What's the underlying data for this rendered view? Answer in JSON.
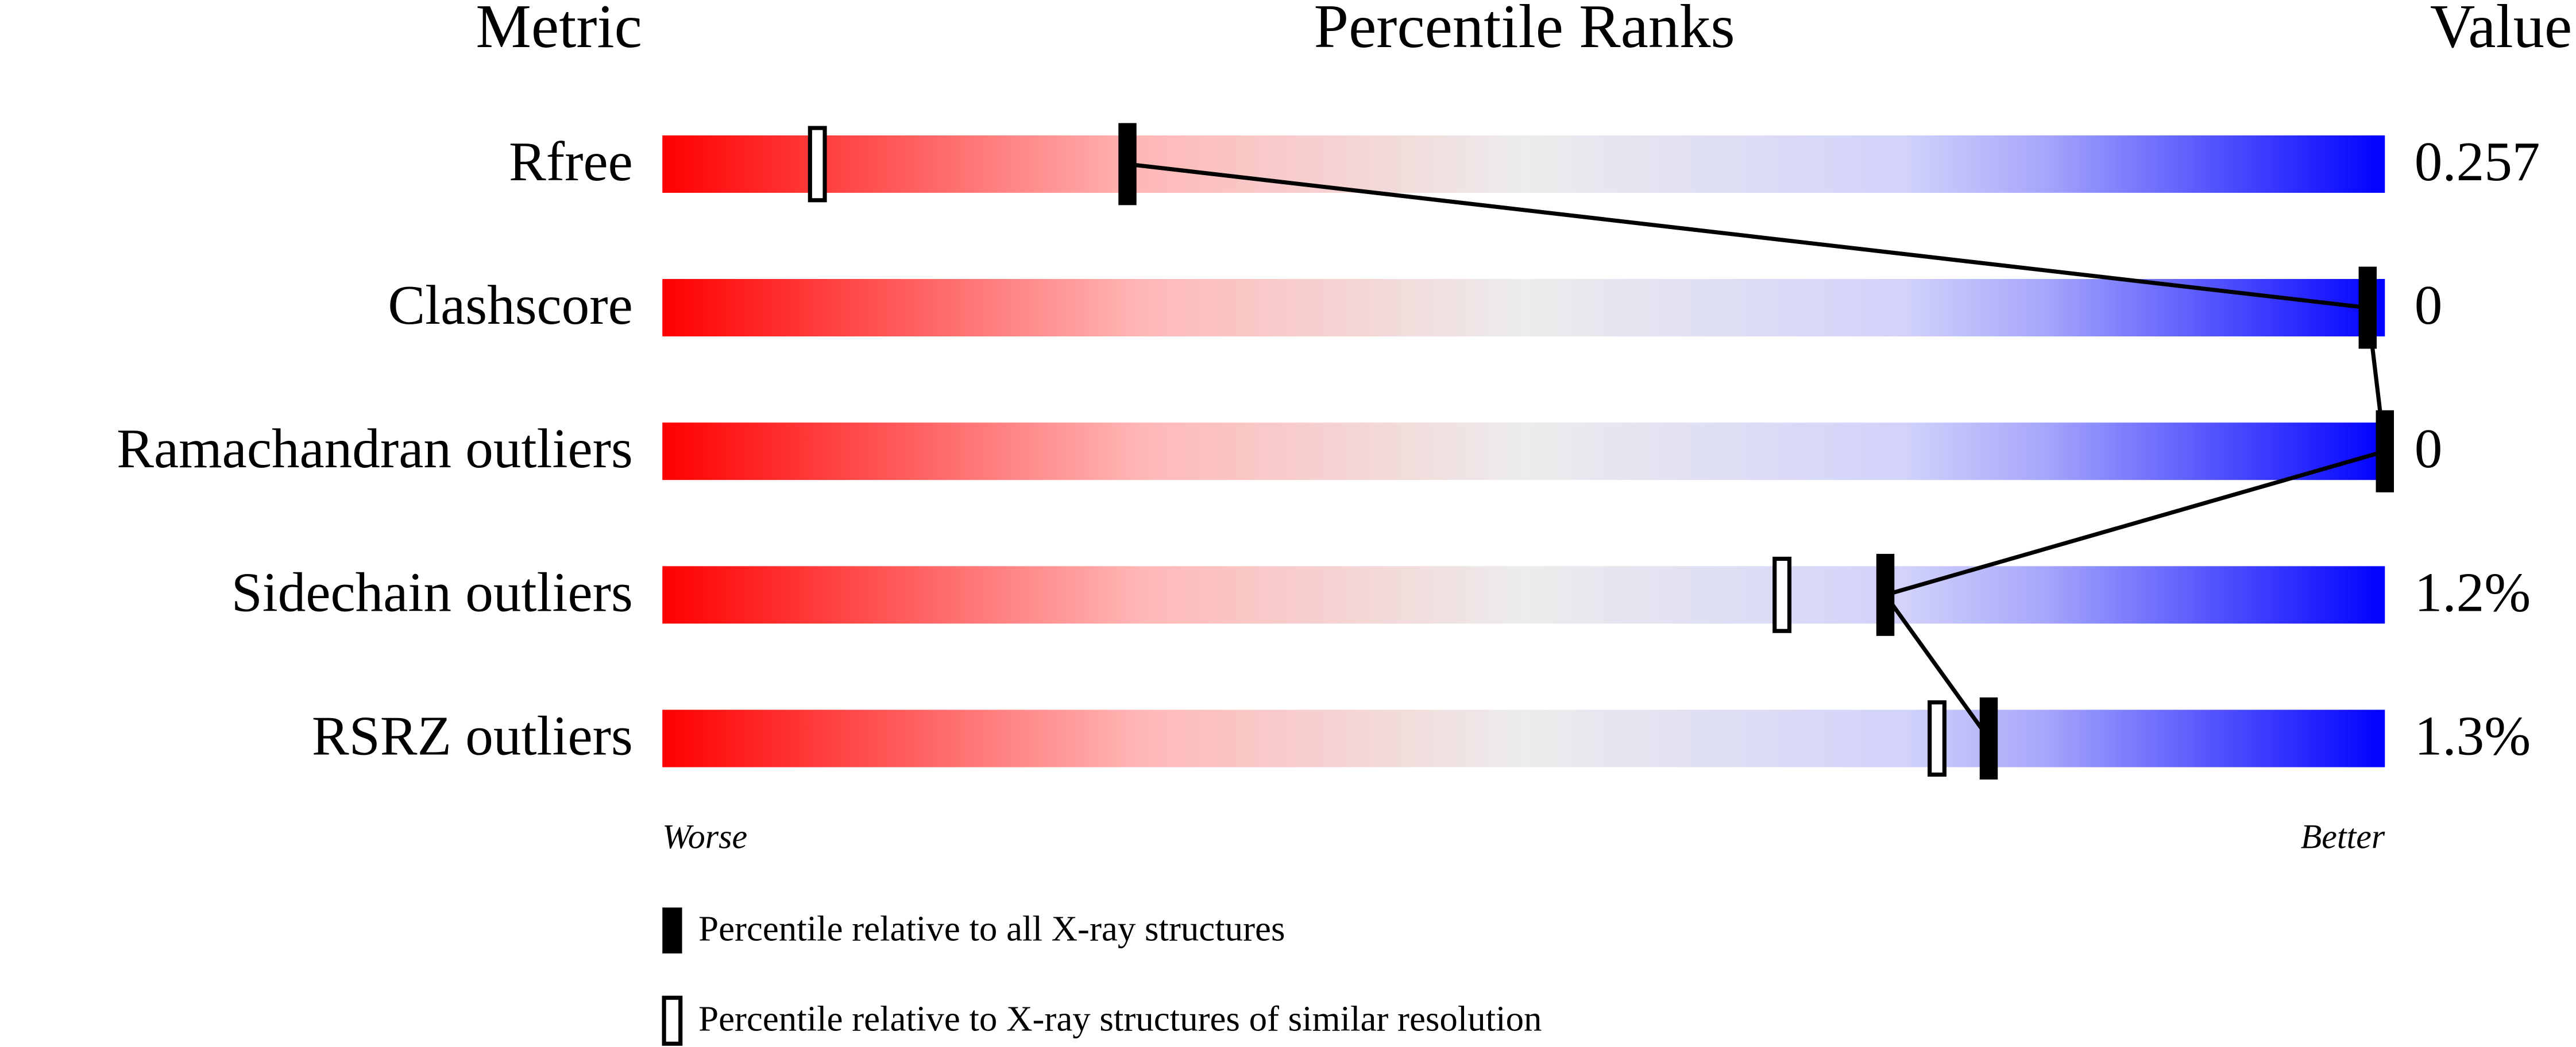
{
  "chart_data": {
    "type": "percentile",
    "headers": [
      "Metric",
      "Percentile Ranks",
      "Value"
    ],
    "categories": [
      "Rfree",
      "Clashscore",
      "Ramachandran outliers",
      "Sidechain outliers",
      "RSRZ outliers"
    ],
    "metric_values": [
      "0.257",
      "0",
      "0",
      "1.2%",
      "1.3%"
    ],
    "series": [
      {
        "name": "Percentile relative to all X-ray structures",
        "style": "filled",
        "values": [
          27,
          99,
          100,
          71,
          77
        ]
      },
      {
        "name": "Percentile relative to X-ray structures of similar resolution",
        "style": "open",
        "values": [
          9,
          null,
          null,
          65,
          74
        ]
      }
    ],
    "xlim": [
      0,
      100
    ],
    "axis_labels": [
      "Worse",
      "Better"
    ]
  }
}
